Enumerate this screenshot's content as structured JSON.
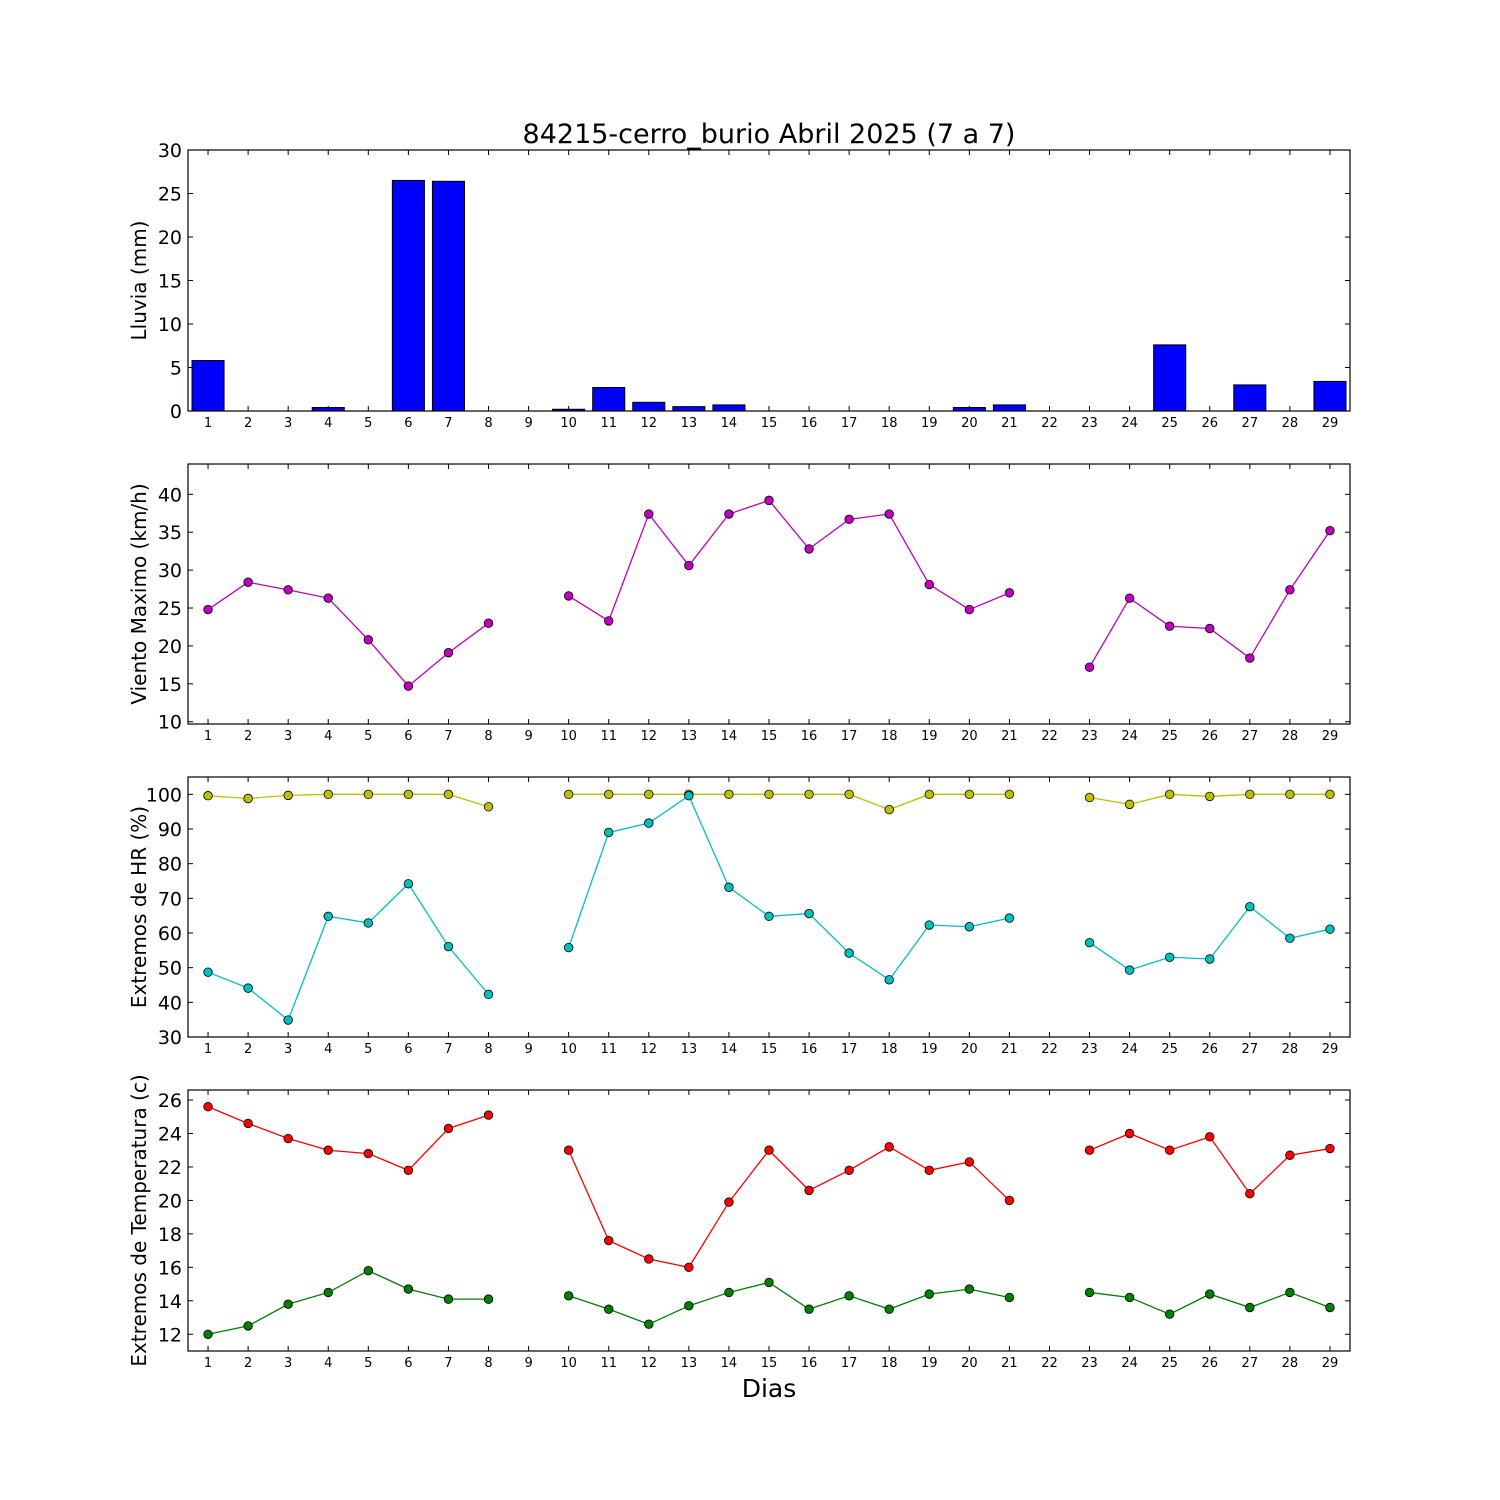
{
  "title": "84215-cerro_burio Abril 2025  (7 a 7)",
  "xlabel": "Dias",
  "chart_data": [
    {
      "type": "bar",
      "ylabel": "Lluvia (mm)",
      "ylim": [
        0,
        30
      ],
      "yticks": [
        0,
        5,
        10,
        15,
        20,
        25,
        30
      ],
      "x": [
        1,
        2,
        3,
        4,
        5,
        6,
        7,
        8,
        9,
        10,
        11,
        12,
        13,
        14,
        15,
        16,
        17,
        18,
        19,
        20,
        21,
        22,
        23,
        24,
        25,
        26,
        27,
        28,
        29
      ],
      "series": [
        {
          "color": "#0000ff",
          "values": [
            5.8,
            0,
            0,
            0.4,
            0,
            26.5,
            26.4,
            0,
            0,
            0.2,
            2.7,
            1.0,
            0.5,
            0.7,
            0,
            0,
            0,
            0,
            0,
            0.4,
            0.7,
            0,
            0,
            0,
            7.6,
            0,
            3.0,
            0,
            3.4
          ]
        }
      ]
    },
    {
      "type": "line",
      "ylabel": "Viento Maximo (km/h)",
      "ylim": [
        9.7,
        44
      ],
      "yticks": [
        10,
        15,
        20,
        25,
        30,
        35,
        40
      ],
      "x": [
        1,
        2,
        3,
        4,
        5,
        6,
        7,
        8,
        9,
        10,
        11,
        12,
        13,
        14,
        15,
        16,
        17,
        18,
        19,
        20,
        21,
        22,
        23,
        24,
        25,
        26,
        27,
        28,
        29
      ],
      "series": [
        {
          "color": "#bf00bf",
          "values": [
            24.8,
            28.4,
            27.4,
            26.3,
            20.8,
            14.7,
            19.1,
            23.0,
            null,
            26.6,
            23.3,
            37.4,
            30.6,
            37.4,
            39.2,
            32.8,
            36.7,
            37.4,
            28.1,
            24.8,
            27.0,
            null,
            17.2,
            26.3,
            22.6,
            22.3,
            18.4,
            27.4,
            35.2
          ]
        }
      ]
    },
    {
      "type": "line",
      "ylabel": "Extremos de HR (%)",
      "ylim": [
        30,
        105
      ],
      "yticks": [
        30,
        40,
        50,
        60,
        70,
        80,
        90,
        100
      ],
      "x": [
        1,
        2,
        3,
        4,
        5,
        6,
        7,
        8,
        9,
        10,
        11,
        12,
        13,
        14,
        15,
        16,
        17,
        18,
        19,
        20,
        21,
        22,
        23,
        24,
        25,
        26,
        27,
        28,
        29
      ],
      "series": [
        {
          "color": "#bfbf00",
          "values": [
            99.6,
            98.8,
            99.7,
            100,
            100,
            100,
            100,
            96.4,
            null,
            100,
            100,
            100,
            100,
            100,
            100,
            100,
            100,
            95.6,
            100,
            100,
            100,
            null,
            99.1,
            97.1,
            100,
            99.4,
            100,
            100,
            100
          ]
        },
        {
          "color": "#00bfbf",
          "values": [
            48.7,
            44.1,
            34.9,
            64.8,
            62.9,
            74.2,
            56.1,
            42.3,
            null,
            55.8,
            89.0,
            91.7,
            99.6,
            73.2,
            64.8,
            65.6,
            54.2,
            46.5,
            62.3,
            61.8,
            64.3,
            null,
            57.2,
            49.3,
            53.0,
            52.5,
            67.6,
            58.5,
            61.1
          ]
        }
      ]
    },
    {
      "type": "line",
      "ylabel": "Extremos de Temperatura (c)",
      "ylim": [
        11,
        26.6
      ],
      "yticks": [
        12,
        14,
        16,
        18,
        20,
        22,
        24,
        26
      ],
      "x": [
        1,
        2,
        3,
        4,
        5,
        6,
        7,
        8,
        9,
        10,
        11,
        12,
        13,
        14,
        15,
        16,
        17,
        18,
        19,
        20,
        21,
        22,
        23,
        24,
        25,
        26,
        27,
        28,
        29
      ],
      "series": [
        {
          "color": "#ff0000",
          "values": [
            25.6,
            24.6,
            23.7,
            23.0,
            22.8,
            21.8,
            24.3,
            25.1,
            null,
            23.0,
            17.6,
            16.5,
            16.0,
            19.9,
            23.0,
            20.6,
            21.8,
            23.2,
            21.8,
            22.3,
            20.0,
            null,
            23.0,
            24.0,
            23.0,
            23.8,
            20.4,
            22.7,
            23.1
          ]
        },
        {
          "color": "#007f00",
          "values": [
            12.0,
            12.5,
            13.8,
            14.5,
            15.8,
            14.7,
            14.1,
            14.1,
            null,
            14.3,
            13.5,
            12.6,
            13.7,
            14.5,
            15.1,
            13.5,
            14.3,
            13.5,
            14.4,
            14.7,
            14.2,
            null,
            14.5,
            14.2,
            13.2,
            14.4,
            13.6,
            14.5,
            13.6
          ]
        }
      ]
    }
  ]
}
